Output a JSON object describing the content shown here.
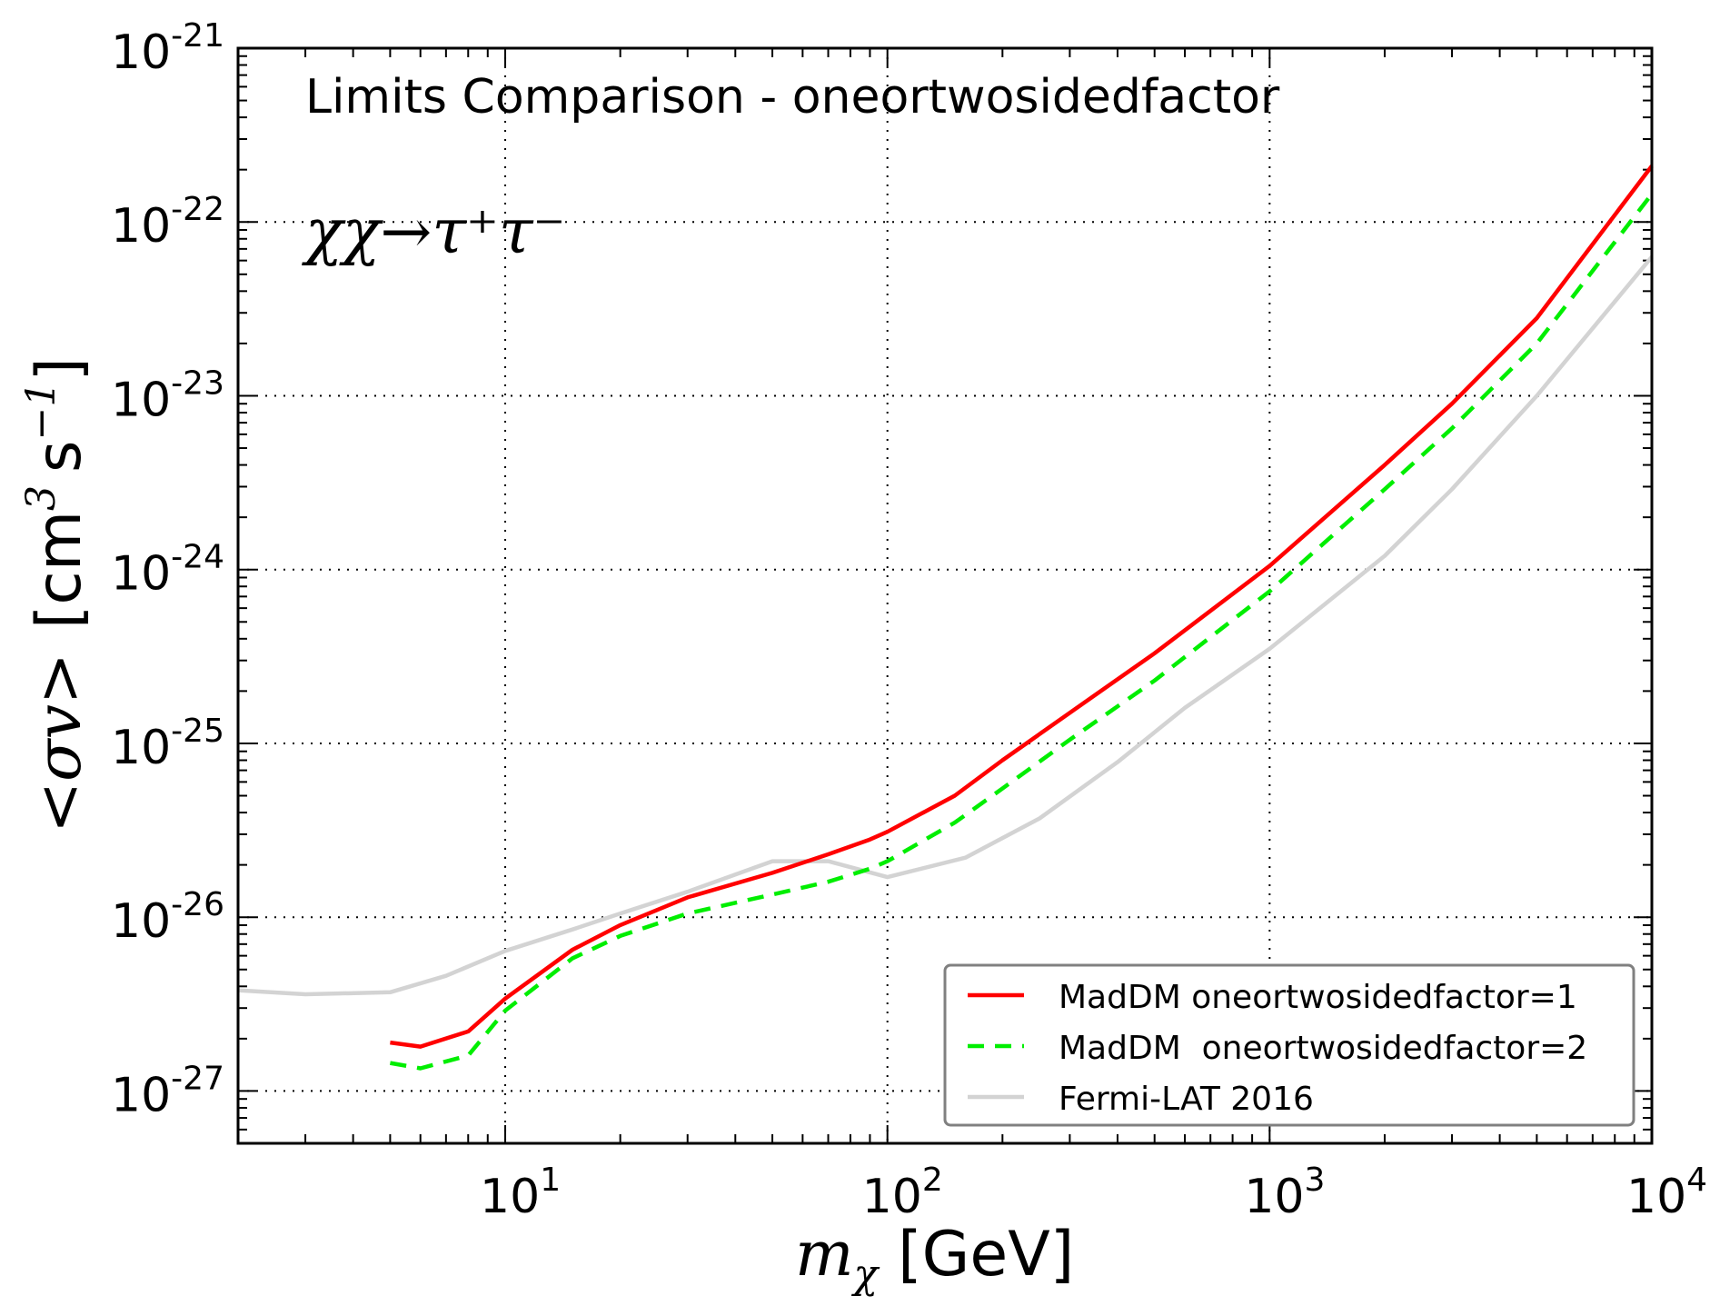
{
  "chart_data": {
    "type": "line",
    "title": "Limits Comparison - oneortwosidedfactor",
    "annotation": "χχ→τ⁺τ⁻",
    "xlabel_symbol": "m",
    "xlabel_sub": "χ",
    "xlabel_unit": "[GeV]",
    "ylabel_symbol": "<σv>",
    "ylabel_unit_open": "[cm",
    "ylabel_unit_exp1": "3",
    "ylabel_unit_mid": "s",
    "ylabel_unit_exp2": "−1",
    "ylabel_unit_close": "]",
    "x_scale": "log",
    "y_scale": "log",
    "xlim": [
      2,
      10000
    ],
    "ylim": [
      5e-28,
      1e-21
    ],
    "grid": true,
    "legend_position": "lower-right",
    "x_ticks": [
      {
        "value": 10,
        "base": "10",
        "exp": "1"
      },
      {
        "value": 100,
        "base": "10",
        "exp": "2"
      },
      {
        "value": 1000,
        "base": "10",
        "exp": "3"
      },
      {
        "value": 10000,
        "base": "10",
        "exp": "4"
      }
    ],
    "y_ticks": [
      {
        "value": 1e-27,
        "base": "10",
        "exp": "-27"
      },
      {
        "value": 1e-26,
        "base": "10",
        "exp": "-26"
      },
      {
        "value": 1e-25,
        "base": "10",
        "exp": "-25"
      },
      {
        "value": 1e-24,
        "base": "10",
        "exp": "-24"
      },
      {
        "value": 1e-23,
        "base": "10",
        "exp": "-23"
      },
      {
        "value": 1e-22,
        "base": "10",
        "exp": "-22"
      },
      {
        "value": 1e-21,
        "base": "10",
        "exp": "-21"
      }
    ],
    "series": [
      {
        "name": "MadDM oneortwosidedfactor=1",
        "color": "#ff0000",
        "dash": "solid",
        "x": [
          5,
          6,
          8,
          10,
          15,
          20,
          30,
          50,
          70,
          90,
          100,
          150,
          200,
          300,
          500,
          1000,
          2000,
          3000,
          5000,
          10000
        ],
        "y": [
          1.9e-27,
          1.8e-27,
          2.2e-27,
          3.4e-27,
          6.5e-27,
          9e-27,
          1.3e-26,
          1.8e-26,
          2.3e-26,
          2.8e-26,
          3.1e-26,
          5e-26,
          8e-26,
          1.5e-25,
          3.3e-25,
          1.05e-24,
          4e-24,
          9e-24,
          2.8e-23,
          2.1e-22
        ]
      },
      {
        "name": "MadDM  oneortwosidedfactor=2",
        "color": "#00ee00",
        "dash": "dashed",
        "x": [
          5,
          6,
          8,
          10,
          15,
          20,
          30,
          50,
          70,
          90,
          100,
          150,
          200,
          300,
          500,
          1000,
          2000,
          3000,
          5000,
          10000
        ],
        "y": [
          1.45e-27,
          1.35e-27,
          1.6e-27,
          2.9e-27,
          5.8e-27,
          7.8e-27,
          1.05e-26,
          1.35e-26,
          1.6e-26,
          1.9e-26,
          2.1e-26,
          3.5e-26,
          5.5e-26,
          1.05e-25,
          2.3e-25,
          7.5e-25,
          2.9e-24,
          6.5e-24,
          2e-23,
          1.45e-22
        ]
      },
      {
        "name": "Fermi-LAT 2016",
        "color": "#d3d3d3",
        "dash": "solid",
        "x": [
          2,
          3,
          5,
          7,
          10,
          15,
          20,
          30,
          50,
          70,
          100,
          160,
          250,
          400,
          600,
          1000,
          2000,
          3000,
          5000,
          10000
        ],
        "y": [
          3.8e-27,
          3.6e-27,
          3.7e-27,
          4.6e-27,
          6.4e-27,
          8.5e-27,
          1.05e-26,
          1.4e-26,
          2.1e-26,
          2.1e-26,
          1.7e-26,
          2.2e-26,
          3.7e-26,
          7.8e-26,
          1.6e-25,
          3.5e-25,
          1.2e-24,
          2.9e-24,
          1e-23,
          6.3e-23
        ]
      }
    ]
  }
}
